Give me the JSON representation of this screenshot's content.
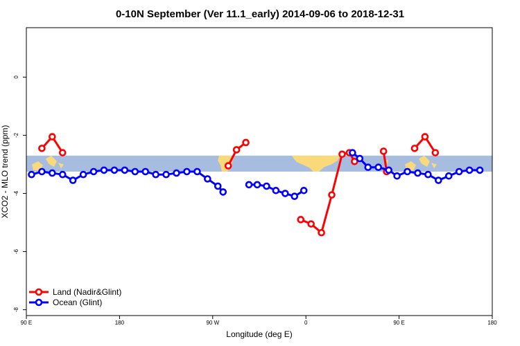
{
  "chart_data": {
    "type": "line",
    "title": "0-10N September (Ver 11.1_early)   2014-09-06 to 2018-12-31",
    "xlabel": "Longitude (deg E)",
    "ylabel": "XCO2 - MLO trend (ppm)",
    "xlim": [
      90,
      540
    ],
    "ylim": [
      -8.2,
      1.7
    ],
    "xticks": [
      {
        "value": 90,
        "label": "90 E"
      },
      {
        "value": 180,
        "label": "180"
      },
      {
        "value": 270,
        "label": "90 W"
      },
      {
        "value": 360,
        "label": "0"
      },
      {
        "value": 450,
        "label": "90 E"
      },
      {
        "value": 540,
        "label": "180"
      }
    ],
    "yticks": [
      {
        "value": 0,
        "label": "0"
      },
      {
        "value": -2,
        "label": "-2"
      },
      {
        "value": -4,
        "label": "-4"
      },
      {
        "value": -6,
        "label": "-6"
      },
      {
        "value": -8,
        "label": "-8"
      }
    ],
    "grid": false,
    "legend_position": "bottom-left",
    "background_band": {
      "y_range": [
        -3.25,
        -2.7
      ],
      "ocean_color": "#a7bde0",
      "land_color": "#fad97a"
    },
    "series": [
      {
        "name": "Land (Nadir&Glint)",
        "color": "#ff0000",
        "segments": [
          [
            [
              105,
              -2.45
            ],
            [
              115,
              -2.05
            ],
            [
              125,
              -2.6
            ]
          ],
          [
            [
              285,
              -3.05
            ],
            [
              293,
              -2.5
            ],
            [
              302,
              -2.25
            ]
          ],
          [
            [
              355,
              -4.9
            ],
            [
              365,
              -5.05
            ],
            [
              375,
              -5.35
            ],
            [
              385,
              -4.05
            ],
            [
              395,
              -2.65
            ],
            [
              402,
              -2.6
            ],
            [
              407,
              -2.9
            ]
          ],
          [
            [
              435,
              -2.55
            ],
            [
              438,
              -3.25
            ]
          ],
          [
            [
              465,
              -2.45
            ],
            [
              475,
              -2.05
            ],
            [
              485,
              -2.6
            ]
          ]
        ]
      },
      {
        "name": "Ocean (Glint)",
        "color": "#0000ff",
        "segments": [
          [
            [
              95,
              -3.35
            ],
            [
              105,
              -3.25
            ],
            [
              115,
              -3.3
            ],
            [
              125,
              -3.35
            ],
            [
              135,
              -3.55
            ],
            [
              145,
              -3.35
            ],
            [
              155,
              -3.25
            ],
            [
              165,
              -3.2
            ],
            [
              175,
              -3.2
            ],
            [
              185,
              -3.2
            ],
            [
              195,
              -3.25
            ],
            [
              205,
              -3.25
            ],
            [
              215,
              -3.35
            ],
            [
              225,
              -3.35
            ],
            [
              235,
              -3.3
            ],
            [
              245,
              -3.25
            ],
            [
              255,
              -3.25
            ],
            [
              265,
              -3.5
            ],
            [
              275,
              -3.75
            ],
            [
              280,
              -3.95
            ]
          ],
          [
            [
              305,
              -3.7
            ],
            [
              313,
              -3.7
            ],
            [
              322,
              -3.75
            ],
            [
              331,
              -3.9
            ],
            [
              340,
              -4.0
            ],
            [
              349,
              -4.1
            ],
            [
              358,
              -3.9
            ]
          ],
          [
            [
              405,
              -2.6
            ],
            [
              412,
              -2.8
            ],
            [
              420,
              -3.1
            ],
            [
              430,
              -3.1
            ],
            [
              440,
              -3.2
            ],
            [
              448,
              -3.4
            ],
            [
              458,
              -3.25
            ],
            [
              468,
              -3.3
            ],
            [
              478,
              -3.35
            ],
            [
              488,
              -3.55
            ],
            [
              498,
              -3.4
            ],
            [
              508,
              -3.25
            ],
            [
              518,
              -3.2
            ],
            [
              528,
              -3.2
            ]
          ]
        ]
      }
    ]
  }
}
